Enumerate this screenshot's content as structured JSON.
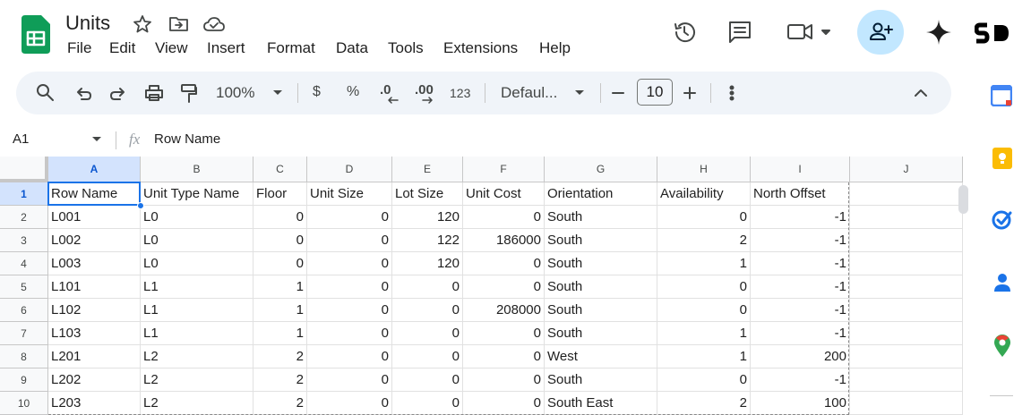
{
  "header": {
    "title": "Units",
    "menu": [
      "File",
      "Edit",
      "View",
      "Insert",
      "Format",
      "Data",
      "Tools",
      "Extensions",
      "Help"
    ]
  },
  "toolbar": {
    "zoom": "100%",
    "currency": "$",
    "percent": "%",
    "decrease_decimal": ".0",
    "increase_decimal": ".00",
    "number_format": "123",
    "font": "Defaul...",
    "font_size": "10"
  },
  "formula_bar": {
    "cell_ref": "A1",
    "fx": "fx",
    "content": "Row Name"
  },
  "grid": {
    "columns": [
      "A",
      "B",
      "C",
      "D",
      "E",
      "F",
      "G",
      "H",
      "I",
      "J"
    ],
    "row_numbers": [
      1,
      2,
      3,
      4,
      5,
      6,
      7,
      8,
      9,
      10
    ],
    "rows": [
      [
        "Row Name",
        "Unit Type Name",
        "Floor",
        "Unit Size",
        "Lot Size",
        "Unit Cost",
        "Orientation",
        "Availability",
        "North Offset"
      ],
      [
        "L001",
        "L0",
        0,
        0,
        120,
        0,
        "South",
        0,
        -1
      ],
      [
        "L002",
        "L0",
        0,
        0,
        122,
        186000,
        "South",
        2,
        -1
      ],
      [
        "L003",
        "L0",
        0,
        0,
        120,
        0,
        "South",
        1,
        -1
      ],
      [
        "L101",
        "L1",
        1,
        0,
        0,
        0,
        "South",
        0,
        -1
      ],
      [
        "L102",
        "L1",
        1,
        0,
        0,
        208000,
        "South",
        0,
        -1
      ],
      [
        "L103",
        "L1",
        1,
        0,
        0,
        0,
        "South",
        1,
        -1
      ],
      [
        "L201",
        "L2",
        2,
        0,
        0,
        0,
        "West",
        1,
        200
      ],
      [
        "L202",
        "L2",
        2,
        0,
        0,
        0,
        "South",
        0,
        -1
      ],
      [
        "L203",
        "L2",
        2,
        0,
        0,
        0,
        "South East",
        2,
        100
      ]
    ]
  }
}
